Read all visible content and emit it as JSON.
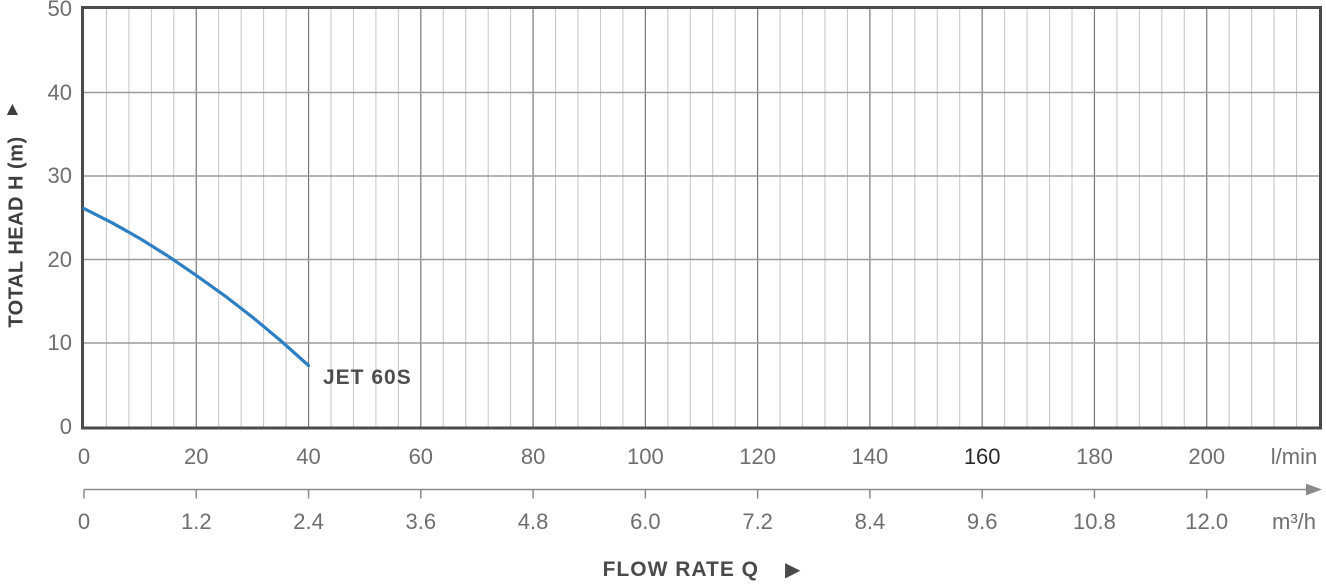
{
  "chart_data": {
    "type": "line",
    "title": "",
    "series": [
      {
        "name": "JET 60S",
        "color": "#2d7fc4",
        "points": [
          [
            0,
            26.1
          ],
          [
            5,
            24.4
          ],
          [
            10,
            22.5
          ],
          [
            15,
            20.4
          ],
          [
            20,
            18.1
          ],
          [
            25,
            15.7
          ],
          [
            30,
            13.1
          ],
          [
            35,
            10.3
          ],
          [
            40,
            7.3
          ]
        ]
      }
    ],
    "x_axis_primary": {
      "unit": "l/min",
      "ticks": [
        0,
        20,
        40,
        60,
        80,
        100,
        120,
        140,
        160,
        180,
        200
      ],
      "emphasized_tick": 160,
      "range": [
        0,
        220
      ],
      "minor_step": 4,
      "major_step": 20
    },
    "x_axis_secondary": {
      "unit": "m³/h",
      "ticks": [
        "0",
        "1.2",
        "2.4",
        "3.6",
        "4.8",
        "6.0",
        "7.2",
        "8.4",
        "9.6",
        "10.8",
        "12.0"
      ]
    },
    "y_axis": {
      "label": "TOTAL HEAD H (m)",
      "ticks": [
        50,
        40,
        30,
        20,
        10,
        0
      ],
      "range": [
        0,
        50
      ],
      "step": 10
    },
    "x_label": "FLOW RATE Q",
    "grid": "on",
    "legend_position": "at-curve-end"
  },
  "icons": {
    "y_axis_arrow": "▲",
    "x_label_arrow": "▶"
  },
  "colors": {
    "curve": "#2d7fc4",
    "plot_border": "#4b4b4b",
    "grid_minor": "#c3c3c3",
    "grid_major_vertical": "#787878",
    "grid_horizontal": "#9b9b9b",
    "axis2_line": "#8a8a8a",
    "tick_text": "#6e6e6e",
    "tick_text_emphasis": "#2b2b2b",
    "label_text": "#3e3e3e"
  }
}
